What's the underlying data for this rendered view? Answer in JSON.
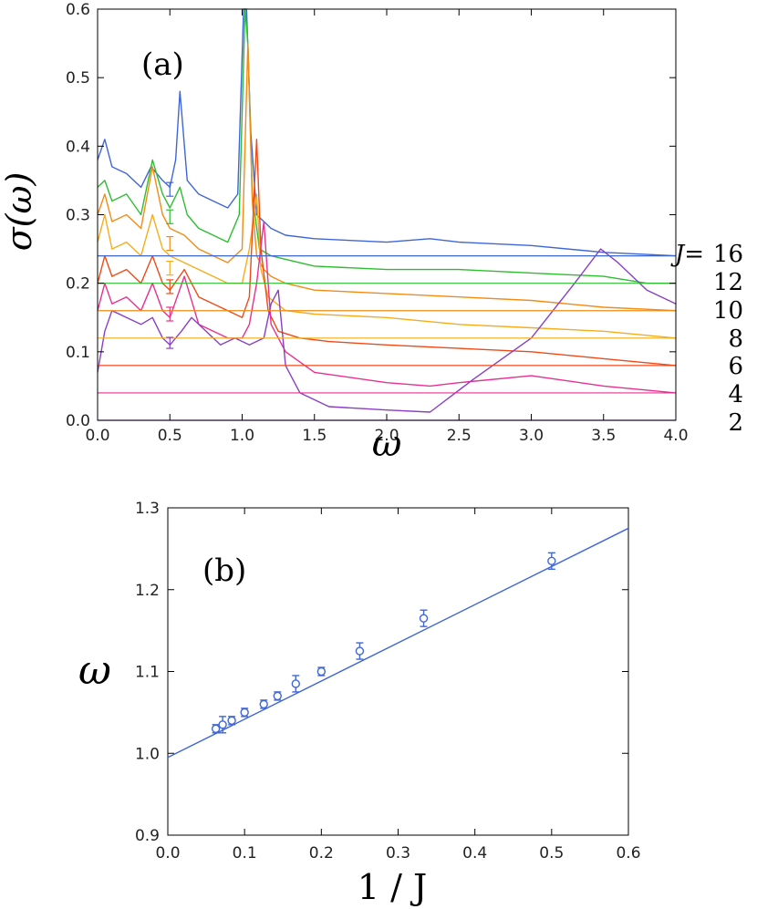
{
  "chart_data": [
    {
      "type": "line",
      "panel_label": "(a)",
      "xlabel": "ω",
      "ylabel": "σ(ω)",
      "xlim": [
        0.0,
        4.0
      ],
      "ylim": [
        0.0,
        0.6
      ],
      "xticks": [
        "0.0",
        "0.5",
        "1.0",
        "1.5",
        "2.0",
        "2.5",
        "3.0",
        "3.5",
        "4.0"
      ],
      "xtick_values": [
        0,
        0.5,
        1.0,
        1.5,
        2.0,
        2.5,
        3.0,
        3.5,
        4.0
      ],
      "yticks": [
        "0.0",
        "0.1",
        "0.2",
        "0.3",
        "0.4",
        "0.5",
        "0.6"
      ],
      "ytick_values": [
        0,
        0.1,
        0.2,
        0.3,
        0.4,
        0.5,
        0.6
      ],
      "legend_prefix": "J=",
      "series": [
        {
          "name": "16",
          "label": "16",
          "color": "#3f66d6",
          "baseline": 0.24,
          "x": [
            0.0,
            0.05,
            0.1,
            0.2,
            0.3,
            0.37,
            0.45,
            0.5,
            0.54,
            0.57,
            0.62,
            0.7,
            0.8,
            0.9,
            0.97,
            1.01,
            1.03,
            1.06,
            1.1,
            1.2,
            1.3,
            1.5,
            2.0,
            2.3,
            2.5,
            3.0,
            3.5,
            4.0
          ],
          "y": [
            0.38,
            0.41,
            0.37,
            0.36,
            0.34,
            0.37,
            0.35,
            0.34,
            0.38,
            0.48,
            0.35,
            0.33,
            0.32,
            0.31,
            0.33,
            0.6,
            0.6,
            0.42,
            0.3,
            0.28,
            0.27,
            0.265,
            0.26,
            0.265,
            0.26,
            0.255,
            0.245,
            0.24
          ]
        },
        {
          "name": "12",
          "label": "12",
          "color": "#2ebd30",
          "baseline": 0.2,
          "x": [
            0.0,
            0.05,
            0.1,
            0.2,
            0.3,
            0.38,
            0.45,
            0.5,
            0.57,
            0.62,
            0.7,
            0.8,
            0.9,
            0.98,
            1.02,
            1.04,
            1.07,
            1.12,
            1.2,
            1.3,
            1.5,
            2.0,
            2.5,
            3.0,
            3.5,
            3.8,
            4.0
          ],
          "y": [
            0.34,
            0.35,
            0.32,
            0.33,
            0.3,
            0.38,
            0.33,
            0.31,
            0.34,
            0.3,
            0.28,
            0.27,
            0.26,
            0.3,
            0.6,
            0.55,
            0.33,
            0.25,
            0.24,
            0.235,
            0.225,
            0.22,
            0.22,
            0.215,
            0.21,
            0.2,
            0.2
          ]
        },
        {
          "name": "10",
          "label": "10",
          "color": "#f28c14",
          "baseline": 0.16,
          "x": [
            0.0,
            0.05,
            0.1,
            0.2,
            0.3,
            0.38,
            0.45,
            0.5,
            0.6,
            0.7,
            0.8,
            0.9,
            1.0,
            1.04,
            1.07,
            1.1,
            1.15,
            1.2,
            1.3,
            1.5,
            2.0,
            2.5,
            3.0,
            3.5,
            4.0
          ],
          "y": [
            0.3,
            0.33,
            0.29,
            0.3,
            0.28,
            0.37,
            0.3,
            0.28,
            0.27,
            0.25,
            0.24,
            0.23,
            0.25,
            0.55,
            0.32,
            0.24,
            0.22,
            0.21,
            0.2,
            0.19,
            0.185,
            0.18,
            0.175,
            0.165,
            0.16
          ]
        },
        {
          "name": "8",
          "label": "8",
          "color": "#f5ad1a",
          "baseline": 0.12,
          "x": [
            0.0,
            0.05,
            0.1,
            0.2,
            0.3,
            0.38,
            0.45,
            0.5,
            0.6,
            0.7,
            0.8,
            0.9,
            1.0,
            1.05,
            1.1,
            1.13,
            1.18,
            1.3,
            1.5,
            2.0,
            2.5,
            3.0,
            3.5,
            4.0
          ],
          "y": [
            0.26,
            0.3,
            0.25,
            0.26,
            0.24,
            0.3,
            0.25,
            0.24,
            0.23,
            0.22,
            0.21,
            0.2,
            0.2,
            0.25,
            0.33,
            0.22,
            0.18,
            0.16,
            0.155,
            0.15,
            0.14,
            0.135,
            0.13,
            0.12
          ]
        },
        {
          "name": "6",
          "label": "6",
          "color": "#ef4a18",
          "baseline": 0.08,
          "x": [
            0.0,
            0.05,
            0.1,
            0.2,
            0.3,
            0.38,
            0.45,
            0.5,
            0.6,
            0.7,
            0.8,
            0.9,
            1.0,
            1.05,
            1.1,
            1.13,
            1.18,
            1.25,
            1.4,
            1.6,
            2.0,
            2.5,
            3.0,
            3.5,
            4.0
          ],
          "y": [
            0.2,
            0.24,
            0.21,
            0.22,
            0.2,
            0.24,
            0.2,
            0.19,
            0.22,
            0.18,
            0.17,
            0.16,
            0.15,
            0.18,
            0.41,
            0.25,
            0.16,
            0.13,
            0.12,
            0.115,
            0.11,
            0.105,
            0.1,
            0.09,
            0.08
          ]
        },
        {
          "name": "4",
          "label": "4",
          "color": "#e8308f",
          "baseline": 0.04,
          "x": [
            0.0,
            0.05,
            0.1,
            0.2,
            0.3,
            0.38,
            0.45,
            0.5,
            0.6,
            0.7,
            0.8,
            0.9,
            1.0,
            1.05,
            1.1,
            1.15,
            1.2,
            1.3,
            1.5,
            2.0,
            2.3,
            2.5,
            3.0,
            3.5,
            4.0
          ],
          "y": [
            0.16,
            0.2,
            0.17,
            0.18,
            0.16,
            0.2,
            0.16,
            0.15,
            0.21,
            0.14,
            0.13,
            0.12,
            0.12,
            0.14,
            0.2,
            0.29,
            0.14,
            0.1,
            0.07,
            0.055,
            0.05,
            0.055,
            0.065,
            0.05,
            0.04
          ]
        },
        {
          "name": "2",
          "label": "2",
          "color": "#8a3fc4",
          "baseline": 0.0,
          "x": [
            0.0,
            0.05,
            0.1,
            0.2,
            0.3,
            0.38,
            0.45,
            0.5,
            0.58,
            0.65,
            0.75,
            0.85,
            0.95,
            1.05,
            1.15,
            1.2,
            1.25,
            1.3,
            1.4,
            1.6,
            2.0,
            2.3,
            2.6,
            3.0,
            3.3,
            3.48,
            3.6,
            3.8,
            4.0
          ],
          "y": [
            0.07,
            0.13,
            0.16,
            0.15,
            0.14,
            0.15,
            0.12,
            0.11,
            0.13,
            0.15,
            0.13,
            0.11,
            0.12,
            0.11,
            0.12,
            0.17,
            0.19,
            0.08,
            0.04,
            0.02,
            0.015,
            0.012,
            0.06,
            0.12,
            0.2,
            0.25,
            0.23,
            0.19,
            0.17
          ]
        }
      ],
      "error_bars": {
        "x": 0.5,
        "points": [
          {
            "y": 0.337,
            "err": 0.01,
            "color": "#3f66d6"
          },
          {
            "y": 0.297,
            "err": 0.01,
            "color": "#2ebd30"
          },
          {
            "y": 0.258,
            "err": 0.01,
            "color": "#f28c14"
          },
          {
            "y": 0.222,
            "err": 0.01,
            "color": "#f5ad1a"
          },
          {
            "y": 0.195,
            "err": 0.01,
            "color": "#ef4a18"
          },
          {
            "y": 0.155,
            "err": 0.01,
            "color": "#e8308f"
          },
          {
            "y": 0.113,
            "err": 0.008,
            "color": "#8a3fc4"
          }
        ]
      }
    },
    {
      "type": "scatter",
      "panel_label": "(b)",
      "xlabel": "1 / J",
      "ylabel": "ω",
      "xlim": [
        0.0,
        0.6
      ],
      "ylim": [
        0.9,
        1.3
      ],
      "xticks": [
        "0.0",
        "0.1",
        "0.2",
        "0.3",
        "0.4",
        "0.5",
        "0.6"
      ],
      "xtick_values": [
        0.0,
        0.1,
        0.2,
        0.3,
        0.4,
        0.5,
        0.6
      ],
      "yticks": [
        "0.9",
        "1.0",
        "1.1",
        "1.2",
        "1.3"
      ],
      "ytick_values": [
        0.9,
        1.0,
        1.1,
        1.2,
        1.3
      ],
      "color": "#3f66d6",
      "points": {
        "x": [
          0.0625,
          0.0714,
          0.0833,
          0.1,
          0.125,
          0.1429,
          0.1667,
          0.2,
          0.25,
          0.3333,
          0.5
        ],
        "y": [
          1.03,
          1.035,
          1.04,
          1.05,
          1.06,
          1.07,
          1.085,
          1.1,
          1.125,
          1.165,
          1.235
        ],
        "err": [
          0.005,
          0.01,
          0.005,
          0.005,
          0.005,
          0.005,
          0.01,
          0.005,
          0.01,
          0.01,
          0.01
        ]
      },
      "fit_line": {
        "x": [
          0.0,
          0.6
        ],
        "y": [
          0.995,
          1.275
        ]
      }
    }
  ]
}
